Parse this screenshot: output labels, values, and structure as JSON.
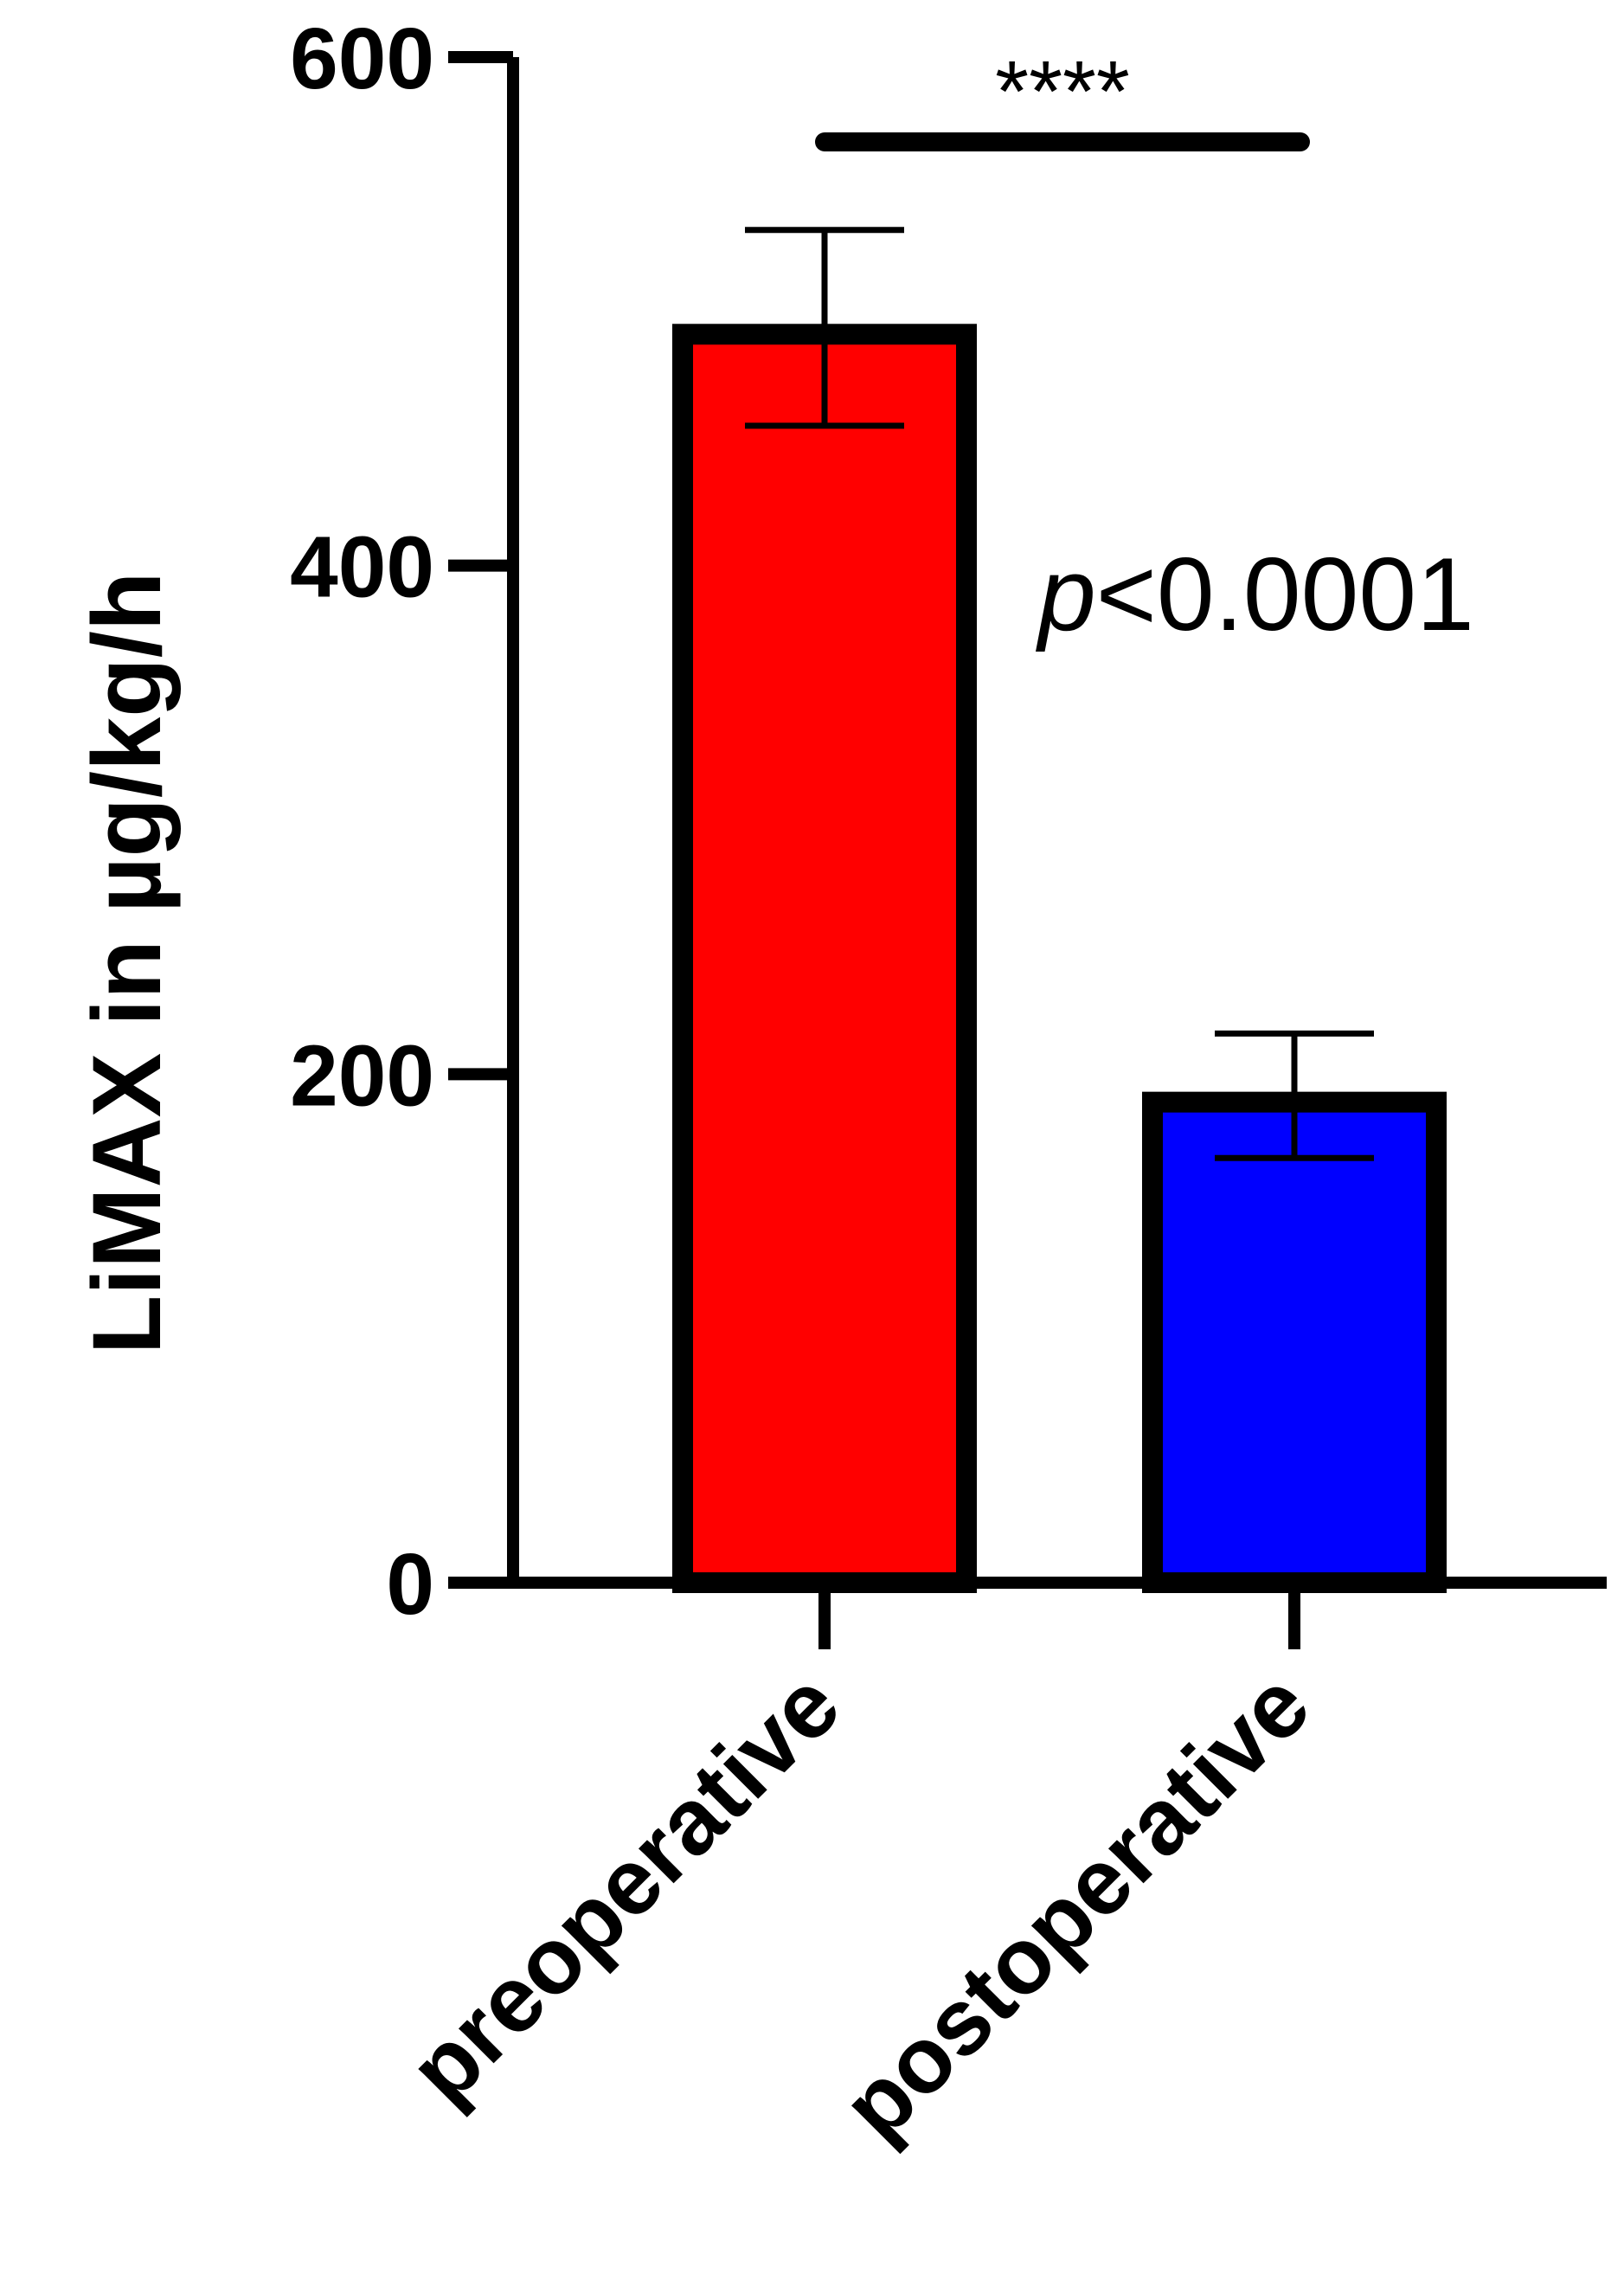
{
  "chart_data": {
    "type": "bar",
    "ylabel": "LiMAX in µg/kg/h",
    "ylim": [
      0,
      600
    ],
    "yticks": [
      0,
      200,
      400,
      600
    ],
    "yticklabels": [
      "0",
      "200",
      "400",
      "600"
    ],
    "grid": false,
    "categories": [
      "preoperative",
      "postoperative"
    ],
    "values": [
      491,
      189
    ],
    "error_upper": [
      532,
      216
    ],
    "error_lower": [
      455,
      167
    ],
    "colors": [
      "#ff0000",
      "#0000ff"
    ],
    "significance": {
      "stars": "****",
      "p_prefix": "p",
      "p_value": "<0.0001"
    }
  }
}
